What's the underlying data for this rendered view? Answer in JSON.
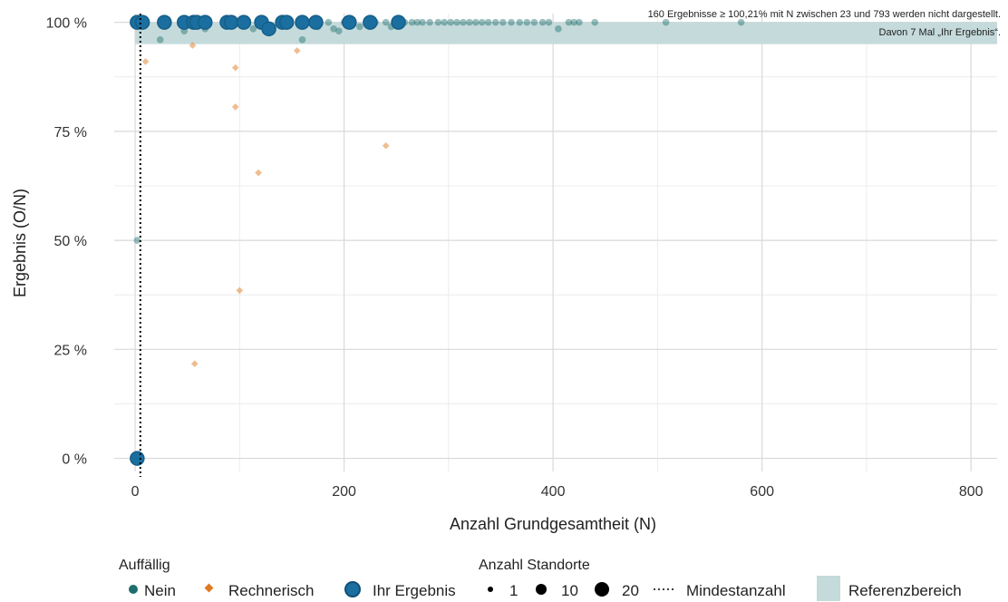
{
  "chart_data": {
    "type": "scatter",
    "xlabel": "Anzahl Grundgesamtheit (N)",
    "ylabel": "Ergebnis (O/N)",
    "xlim": [
      -20,
      825
    ],
    "ylim": [
      -0.03,
      1.02
    ],
    "x_ticks": [
      0,
      200,
      400,
      600,
      800
    ],
    "x_tick_labels": [
      "0",
      "200",
      "400",
      "600",
      "800"
    ],
    "y_ticks": [
      0,
      0.25,
      0.5,
      0.75,
      1.0
    ],
    "y_tick_labels": [
      "0 %",
      "25 %",
      "50 %",
      "75 %",
      "100 %"
    ],
    "grid": true,
    "reference_range": [
      0.95,
      1.0
    ],
    "min_count_line_x": 5,
    "annotation_lines": [
      "160 Ergebnisse ≥ 100,21% mit N zwischen 23 und 793 werden nicht dargestellt.",
      "Davon 7 Mal „Ihr Ergebnis“."
    ],
    "colors": {
      "nein": "#1f6e6e",
      "rechnerisch": "#e07b24",
      "ihr_ergebnis": "#1a6fa0",
      "ihr_ergebnis_outline": "#165e88",
      "reference": "#c5dadb",
      "grid": "#d9d9d9",
      "min_line": "#000000"
    },
    "series": [
      {
        "name": "Nein",
        "marker": "circle",
        "points": [
          [
            2,
            0.5
          ],
          [
            24,
            0.96
          ],
          [
            47,
            0.98
          ],
          [
            67,
            0.985
          ],
          [
            113,
            0.985
          ],
          [
            160,
            0.96
          ],
          [
            175,
            0.99
          ],
          [
            190,
            0.985
          ],
          [
            195,
            0.98
          ],
          [
            215,
            0.99
          ],
          [
            245,
            0.99
          ],
          [
            258,
            1.0
          ],
          [
            265,
            1.0
          ],
          [
            275,
            1.0
          ],
          [
            282,
            1.0
          ],
          [
            290,
            1.0
          ],
          [
            296,
            1.0
          ],
          [
            302,
            1.0
          ],
          [
            308,
            1.0
          ],
          [
            314,
            1.0
          ],
          [
            320,
            1.0
          ],
          [
            326,
            1.0
          ],
          [
            332,
            1.0
          ],
          [
            338,
            1.0
          ],
          [
            345,
            1.0
          ],
          [
            352,
            1.0
          ],
          [
            360,
            1.0
          ],
          [
            368,
            1.0
          ],
          [
            375,
            1.0
          ],
          [
            382,
            1.0
          ],
          [
            390,
            1.0
          ],
          [
            396,
            1.0
          ],
          [
            405,
            0.985
          ],
          [
            415,
            1.0
          ],
          [
            420,
            1.0
          ],
          [
            425,
            1.0
          ],
          [
            440,
            1.0
          ],
          [
            508,
            1.0
          ],
          [
            580,
            1.0
          ],
          [
            185,
            1.0
          ],
          [
            200,
            1.0
          ],
          [
            230,
            1.0
          ],
          [
            240,
            1.0
          ],
          [
            250,
            1.0
          ],
          [
            270,
            1.0
          ]
        ]
      },
      {
        "name": "Rechnerisch",
        "marker": "diamond",
        "points": [
          [
            10,
            0.91
          ],
          [
            55,
            0.947
          ],
          [
            57,
            0.217
          ],
          [
            96,
            0.896
          ],
          [
            96,
            0.806
          ],
          [
            100,
            0.385
          ],
          [
            118,
            0.655
          ],
          [
            155,
            0.935
          ],
          [
            240,
            0.717
          ]
        ]
      },
      {
        "name": "Ihr Ergebnis",
        "marker": "circle-outlined",
        "points": [
          [
            2,
            1.0
          ],
          [
            7,
            1.0
          ],
          [
            28,
            1.0
          ],
          [
            47,
            1.0
          ],
          [
            56,
            1.0
          ],
          [
            59,
            1.0
          ],
          [
            67,
            1.0
          ],
          [
            88,
            1.0
          ],
          [
            92,
            1.0
          ],
          [
            104,
            1.0
          ],
          [
            121,
            1.0
          ],
          [
            128,
            0.985
          ],
          [
            141,
            1.0
          ],
          [
            145,
            1.0
          ],
          [
            160,
            1.0
          ],
          [
            173,
            1.0
          ],
          [
            205,
            1.0
          ],
          [
            225,
            1.0
          ],
          [
            252,
            1.0
          ],
          [
            2,
            0.0
          ]
        ]
      }
    ]
  },
  "legend": {
    "auffaellig_title": "Auffällig",
    "anzahl_title": "Anzahl Standorte",
    "nein": "Nein",
    "rechnerisch": "Rechnerisch",
    "ihr_ergebnis": "Ihr Ergebnis",
    "size_1": "1",
    "size_10": "10",
    "size_20": "20",
    "mindestanzahl": "Mindestanzahl",
    "referenzbereich": "Referenzbereich"
  }
}
